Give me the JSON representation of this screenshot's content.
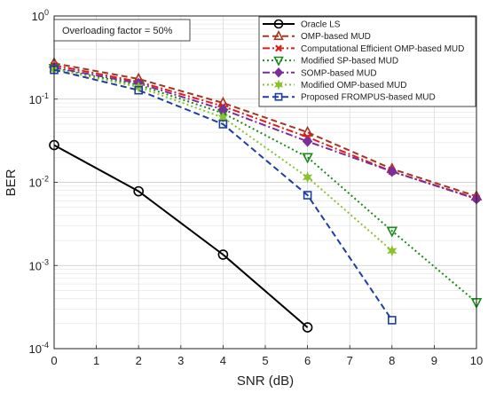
{
  "chart_data": {
    "type": "line",
    "title": "",
    "xlabel": "SNR (dB)",
    "ylabel": "BER",
    "xlim": [
      0,
      10
    ],
    "ylim": [
      0.0001,
      1
    ],
    "yscale": "log",
    "grid": true,
    "legend_position": "top-right",
    "annotation": "Overloading factor = 50%",
    "x_ticks": [
      "0",
      "1",
      "2",
      "3",
      "4",
      "5",
      "6",
      "7",
      "8",
      "9",
      "10"
    ],
    "y_ticks": [
      {
        "value": 1,
        "mant": "10",
        "exp": "0"
      },
      {
        "value": 0.1,
        "mant": "10",
        "exp": "-1"
      },
      {
        "value": 0.01,
        "mant": "10",
        "exp": "-2"
      },
      {
        "value": 0.001,
        "mant": "10",
        "exp": "-3"
      },
      {
        "value": 0.0001,
        "mant": "10",
        "exp": "-4"
      }
    ],
    "series": [
      {
        "name": "Oracle LS",
        "color": "#000000",
        "dash": "solid",
        "marker": "circle",
        "x": [
          0,
          2,
          4,
          6
        ],
        "y": [
          0.028,
          0.0078,
          0.00135,
          0.00018
        ]
      },
      {
        "name": "OMP-based MUD",
        "color": "#a5361f",
        "dash": "dashed",
        "marker": "triangle-up",
        "x": [
          0,
          2,
          4,
          6,
          8,
          10
        ],
        "y": [
          0.27,
          0.175,
          0.09,
          0.04,
          0.0145,
          0.0068
        ]
      },
      {
        "name": "Computational Efficient OMP-based MUD",
        "color": "#e01b1b",
        "dash": "dashdot",
        "marker": "x",
        "x": [
          0,
          2,
          4,
          6,
          8,
          10
        ],
        "y": [
          0.255,
          0.162,
          0.082,
          0.035,
          0.0135,
          0.0064
        ]
      },
      {
        "name": "Modified SP-based MUD",
        "color": "#1a8a1a",
        "dash": "dotted",
        "marker": "triangle-down",
        "x": [
          0,
          2,
          4,
          6,
          8,
          10
        ],
        "y": [
          0.235,
          0.148,
          0.068,
          0.02,
          0.0026,
          0.00036
        ]
      },
      {
        "name": "SOMP-based MUD",
        "color": "#7b2d9b",
        "dash": "dashdot",
        "marker": "diamond",
        "x": [
          0,
          2,
          4,
          6,
          8,
          10
        ],
        "y": [
          0.24,
          0.155,
          0.075,
          0.031,
          0.0135,
          0.0063
        ]
      },
      {
        "name": " Modified OMP-based MUD",
        "color": "#8ac22e",
        "dash": "dotted",
        "marker": "hexagram",
        "x": [
          0,
          2,
          4,
          6,
          8
        ],
        "y": [
          0.23,
          0.14,
          0.06,
          0.0115,
          0.0015
        ]
      },
      {
        "name": "Proposed FROMPUS-based MUD",
        "color": "#1f3f9f",
        "dash": "dashed",
        "marker": "square",
        "x": [
          0,
          2,
          4,
          6,
          8
        ],
        "y": [
          0.225,
          0.128,
          0.05,
          0.007,
          0.00022
        ]
      }
    ]
  }
}
